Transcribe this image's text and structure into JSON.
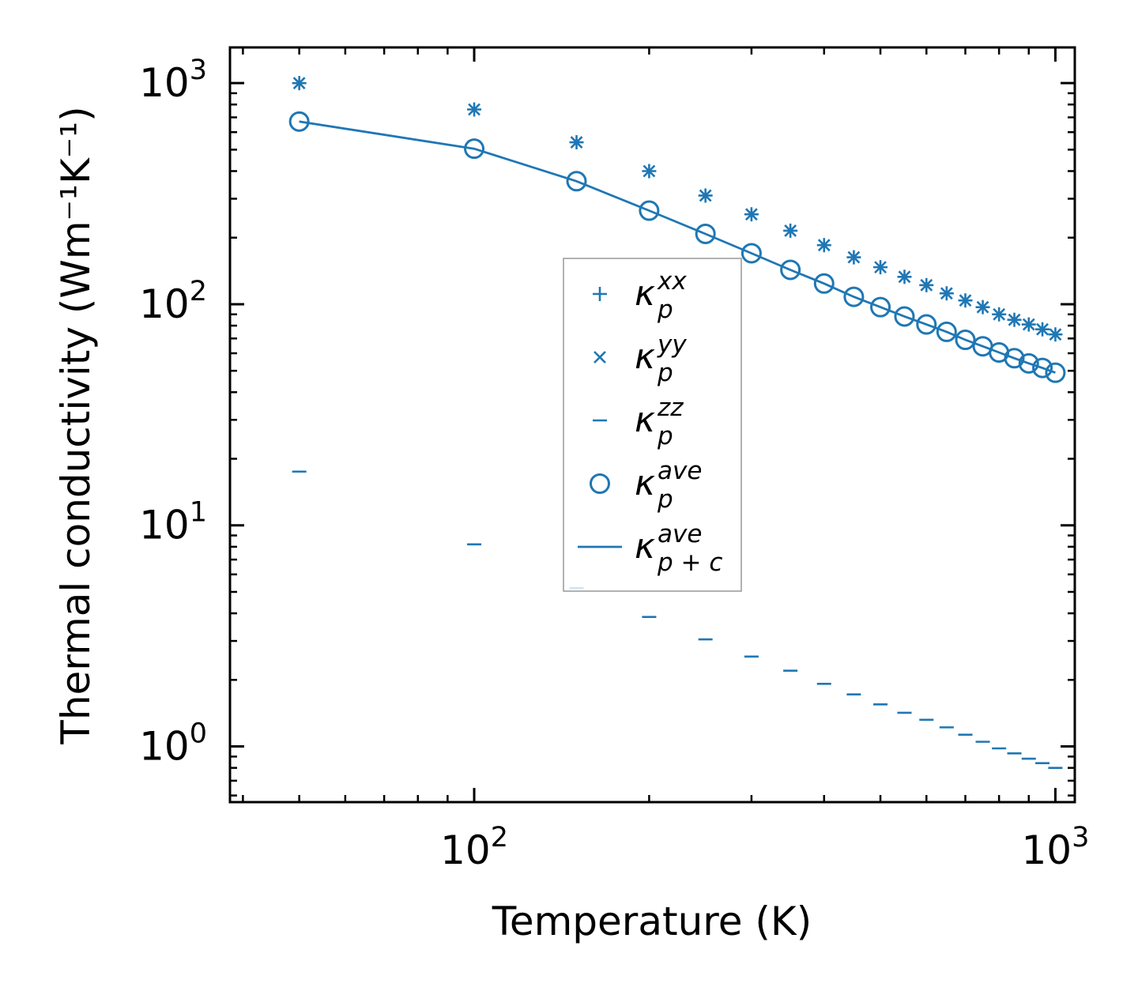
{
  "chart_data": {
    "type": "scatter",
    "xscale": "log",
    "yscale": "log",
    "xlabel": "Temperature (K)",
    "ylabel": "Thermal conductivity (Wm⁻¹K⁻¹)",
    "xlim": [
      38,
      1080
    ],
    "ylim": [
      0.56,
      1450
    ],
    "x_ticks": [
      {
        "value": 100,
        "base": "10",
        "exp": "2"
      },
      {
        "value": 1000,
        "base": "10",
        "exp": "3"
      }
    ],
    "y_ticks": [
      {
        "value": 1,
        "base": "10",
        "exp": "0"
      },
      {
        "value": 10,
        "base": "10",
        "exp": "1"
      },
      {
        "value": 100,
        "base": "10",
        "exp": "2"
      },
      {
        "value": 1000,
        "base": "10",
        "exp": "3"
      }
    ],
    "x": [
      50,
      100,
      150,
      200,
      250,
      300,
      350,
      400,
      450,
      500,
      550,
      600,
      650,
      700,
      750,
      800,
      850,
      900,
      950,
      1000
    ],
    "series": [
      {
        "name": "kxx",
        "marker": "plus",
        "label": {
          "base": "κ",
          "sub": "p",
          "sup": "xx"
        },
        "values": [
          1000,
          760,
          540,
          400,
          310,
          255,
          215,
          185,
          163,
          147,
          133,
          122,
          112,
          104,
          97,
          90,
          85,
          81,
          77,
          73
        ]
      },
      {
        "name": "kyy",
        "marker": "x",
        "label": {
          "base": "κ",
          "sub": "p",
          "sup": "yy"
        },
        "values": [
          1000,
          760,
          540,
          400,
          310,
          255,
          215,
          185,
          163,
          147,
          133,
          122,
          112,
          104,
          97,
          90,
          85,
          81,
          77,
          73
        ]
      },
      {
        "name": "kzz",
        "marker": "dash",
        "label": {
          "base": "κ",
          "sub": "p",
          "sup": "zz"
        },
        "values": [
          17.5,
          8.2,
          5.2,
          3.85,
          3.05,
          2.55,
          2.2,
          1.92,
          1.72,
          1.55,
          1.42,
          1.32,
          1.22,
          1.13,
          1.05,
          0.98,
          0.93,
          0.88,
          0.84,
          0.8
        ]
      },
      {
        "name": "kave",
        "marker": "circle",
        "label": {
          "base": "κ",
          "sub": "p",
          "sup": "ave"
        },
        "values": [
          670,
          505,
          360,
          265,
          208,
          170,
          143,
          124,
          108,
          97,
          88,
          81,
          75,
          69,
          64.5,
          60.5,
          57,
          54,
          51.5,
          49
        ]
      },
      {
        "name": "kave_pc",
        "marker": "line",
        "label": {
          "base": "κ",
          "sub": "p + c",
          "sup": "ave"
        },
        "values": [
          670,
          505,
          360,
          265,
          208,
          170,
          143,
          124,
          108,
          97,
          88,
          81,
          75,
          69,
          64.5,
          60.5,
          57,
          54,
          51.5,
          49
        ]
      }
    ],
    "legend_position": "center",
    "color": "#1f77b4"
  }
}
